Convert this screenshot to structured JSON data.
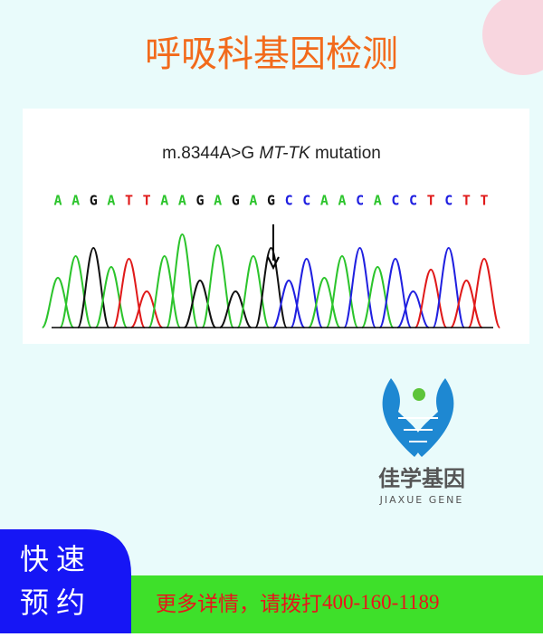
{
  "header": {
    "title": "呼吸科基因检测"
  },
  "figure": {
    "caption_prefix": "m.8344A>G",
    "caption_gene": "MT-TK",
    "caption_suffix": "mutation",
    "sequence": [
      "A",
      "A",
      "G",
      "A",
      "T",
      "T",
      "A",
      "A",
      "G",
      "A",
      "G",
      "A",
      "G",
      "C",
      "C",
      "A",
      "A",
      "C",
      "A",
      "C",
      "C",
      "T",
      "C",
      "T",
      "T"
    ]
  },
  "logo": {
    "name": "佳学基因",
    "name_en": "JIAXUE GENE"
  },
  "button": {
    "line1": "快速",
    "line2": "预约"
  },
  "banner": {
    "text": "更多详情，请拨打",
    "phone": "400-160-1189"
  }
}
